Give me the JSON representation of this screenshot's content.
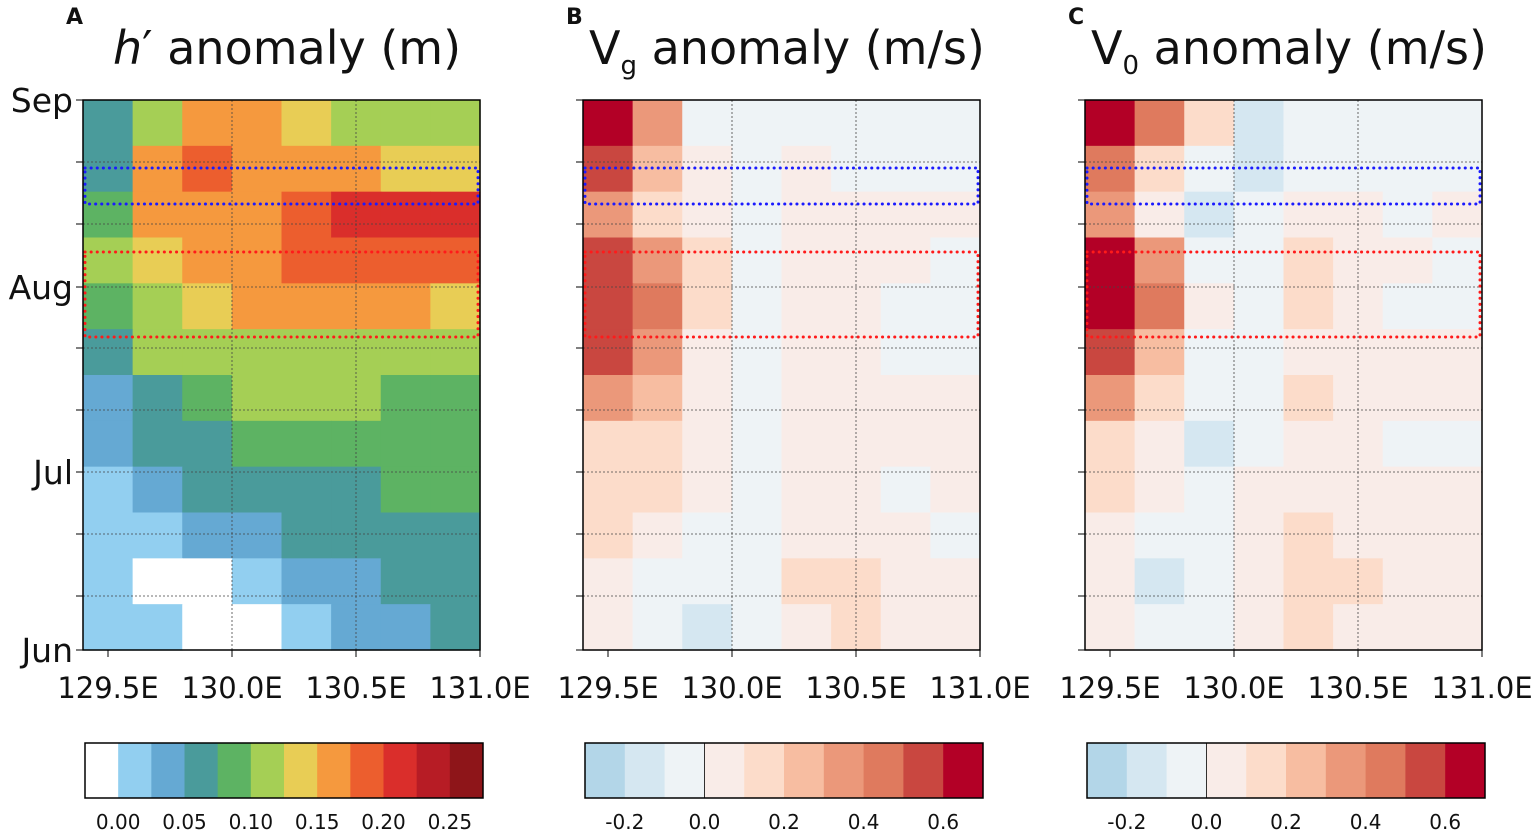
{
  "chart_data": [
    {
      "type": "heatmap",
      "panel": "A",
      "title_main": "h",
      "title_prime": "′",
      "title_rest": " anomaly (m)",
      "title_sub": "",
      "x": [
        129.5,
        129.7,
        129.9,
        130.1,
        130.3,
        130.5,
        130.7,
        130.9
      ],
      "xticks": [
        "129.5E",
        "130.0E",
        "130.5E",
        "131.0E"
      ],
      "yticks": [
        "Sep",
        "Aug",
        "Jul",
        "Jun"
      ],
      "xlim": [
        129.4,
        131.0
      ],
      "levels_start": -0.025,
      "levels_step": 0.025,
      "colors": [
        "#ffffff",
        "#92cff0",
        "#65a9d3",
        "#4a9b9b",
        "#5db363",
        "#a5cf55",
        "#e8cd55",
        "#f5993e",
        "#ec5e2e",
        "#da2e2b",
        "#b71c25",
        "#8e1519"
      ],
      "colorbar_ticks": [
        "0.00",
        "0.05",
        "0.10",
        "0.15",
        "0.20",
        "0.25"
      ],
      "values": [
        [
          0.05,
          0.1,
          0.15,
          0.17,
          0.13,
          0.12,
          0.1,
          0.1
        ],
        [
          0.07,
          0.17,
          0.18,
          0.16,
          0.15,
          0.15,
          0.13,
          0.13
        ],
        [
          0.08,
          0.15,
          0.16,
          0.17,
          0.18,
          0.2,
          0.21,
          0.21
        ],
        [
          0.1,
          0.14,
          0.15,
          0.17,
          0.18,
          0.18,
          0.18,
          0.18
        ],
        [
          0.08,
          0.12,
          0.14,
          0.16,
          0.17,
          0.17,
          0.16,
          0.14
        ],
        [
          0.05,
          0.1,
          0.12,
          0.12,
          0.11,
          0.11,
          0.11,
          0.11
        ],
        [
          0.03,
          0.07,
          0.09,
          0.1,
          0.1,
          0.1,
          0.09,
          0.09
        ],
        [
          0.03,
          0.05,
          0.07,
          0.08,
          0.08,
          0.08,
          0.08,
          0.08
        ],
        [
          0.02,
          0.04,
          0.05,
          0.06,
          0.07,
          0.07,
          0.08,
          0.08
        ],
        [
          0.02,
          0.02,
          0.03,
          0.04,
          0.05,
          0.05,
          0.06,
          0.07
        ],
        [
          0.02,
          -0.01,
          -0.01,
          0.02,
          0.03,
          0.04,
          0.05,
          0.05
        ],
        [
          0.02,
          0.01,
          -0.01,
          -0.01,
          0.01,
          0.03,
          0.04,
          0.05
        ]
      ]
    },
    {
      "type": "heatmap",
      "panel": "B",
      "title_main": "V",
      "title_prime": "",
      "title_rest": " anomaly (m/s)",
      "title_sub": "g",
      "x": [
        129.5,
        129.7,
        129.9,
        130.1,
        130.3,
        130.5,
        130.7,
        130.9
      ],
      "xticks": [
        "129.5E",
        "130.0E",
        "130.5E",
        "131.0E"
      ],
      "yticks": [
        "",
        "",
        "",
        ""
      ],
      "xlim": [
        129.4,
        131.0
      ],
      "levels_start": -0.3,
      "levels_step": 0.1,
      "colors": [
        "#b3d6e8",
        "#d5e7f1",
        "#eef3f6",
        "#f9ece8",
        "#fcdcca",
        "#f7bda1",
        "#eb987a",
        "#df7a5e",
        "#c94740",
        "#b30026"
      ],
      "colorbar_ticks": [
        "-0.2",
        "0.0",
        "0.2",
        "0.4",
        "0.6"
      ],
      "values": [
        [
          0.6,
          0.3,
          -0.05,
          -0.05,
          -0.05,
          -0.05,
          -0.05,
          -0.05
        ],
        [
          0.5,
          0.2,
          0.05,
          -0.05,
          0.05,
          -0.05,
          -0.05,
          -0.05
        ],
        [
          0.3,
          0.15,
          0.05,
          -0.05,
          0.05,
          0.05,
          0.05,
          0.05
        ],
        [
          0.55,
          0.35,
          0.1,
          -0.05,
          0.05,
          0.05,
          0.05,
          -0.05
        ],
        [
          0.55,
          0.4,
          0.1,
          -0.05,
          0.05,
          0.05,
          -0.05,
          -0.05
        ],
        [
          0.5,
          0.3,
          0.05,
          -0.05,
          0.05,
          0.05,
          -0.05,
          -0.05
        ],
        [
          0.3,
          0.2,
          0.05,
          -0.05,
          0.05,
          0.05,
          0.05,
          0.05
        ],
        [
          0.15,
          0.15,
          0.05,
          -0.05,
          0.05,
          0.05,
          0.05,
          0.05
        ],
        [
          0.1,
          0.1,
          0.05,
          -0.05,
          0.05,
          0.05,
          -0.05,
          0.05
        ],
        [
          0.1,
          0.05,
          -0.05,
          -0.05,
          0.05,
          0.05,
          0.05,
          -0.05
        ],
        [
          0.05,
          -0.05,
          -0.05,
          -0.05,
          0.15,
          0.15,
          0.05,
          0.05
        ],
        [
          0.05,
          -0.05,
          -0.15,
          -0.05,
          0.05,
          0.15,
          0.05,
          0.05
        ]
      ]
    },
    {
      "type": "heatmap",
      "panel": "C",
      "title_main": "V",
      "title_prime": "",
      "title_rest": " anomaly (m/s)",
      "title_sub": "0",
      "x": [
        129.5,
        129.7,
        129.9,
        130.1,
        130.3,
        130.5,
        130.7,
        130.9
      ],
      "xticks": [
        "129.5E",
        "130.0E",
        "130.5E",
        "131.0E"
      ],
      "yticks": [
        "",
        "",
        "",
        ""
      ],
      "xlim": [
        129.4,
        131.0
      ],
      "levels_start": -0.3,
      "levels_step": 0.1,
      "colors": [
        "#b3d6e8",
        "#d5e7f1",
        "#eef3f6",
        "#f9ece8",
        "#fcdcca",
        "#f7bda1",
        "#eb987a",
        "#df7a5e",
        "#c94740",
        "#b30026"
      ],
      "colorbar_ticks": [
        "-0.2",
        "0.0",
        "0.2",
        "0.4",
        "0.6"
      ],
      "values": [
        [
          0.65,
          0.4,
          0.1,
          -0.15,
          -0.1,
          -0.05,
          -0.05,
          -0.05
        ],
        [
          0.4,
          0.15,
          -0.05,
          -0.15,
          -0.05,
          -0.05,
          -0.05,
          -0.05
        ],
        [
          0.3,
          0.05,
          -0.15,
          -0.05,
          0.05,
          0.05,
          -0.05,
          0.05
        ],
        [
          0.6,
          0.3,
          -0.05,
          -0.05,
          0.15,
          0.05,
          0.05,
          -0.05
        ],
        [
          0.7,
          0.4,
          0.05,
          -0.05,
          0.15,
          0.05,
          -0.05,
          -0.05
        ],
        [
          0.5,
          0.25,
          -0.05,
          -0.05,
          0.05,
          0.05,
          0.05,
          0.05
        ],
        [
          0.3,
          0.1,
          -0.05,
          -0.05,
          0.15,
          0.05,
          0.05,
          0.05
        ],
        [
          0.15,
          0.05,
          -0.15,
          -0.05,
          0.05,
          0.05,
          -0.05,
          -0.05
        ],
        [
          0.1,
          0.05,
          -0.05,
          0.05,
          0.05,
          0.05,
          0.05,
          0.05
        ],
        [
          0.05,
          -0.05,
          -0.05,
          0.05,
          0.15,
          0.05,
          0.05,
          0.05
        ],
        [
          0.05,
          -0.15,
          -0.05,
          0.05,
          0.15,
          0.15,
          0.05,
          0.05
        ],
        [
          0.05,
          -0.05,
          -0.05,
          0.05,
          0.1,
          0.05,
          0.05,
          0.05
        ]
      ]
    }
  ],
  "boxes": {
    "blue": "#1a1aff",
    "red": "#ff1a1a"
  }
}
